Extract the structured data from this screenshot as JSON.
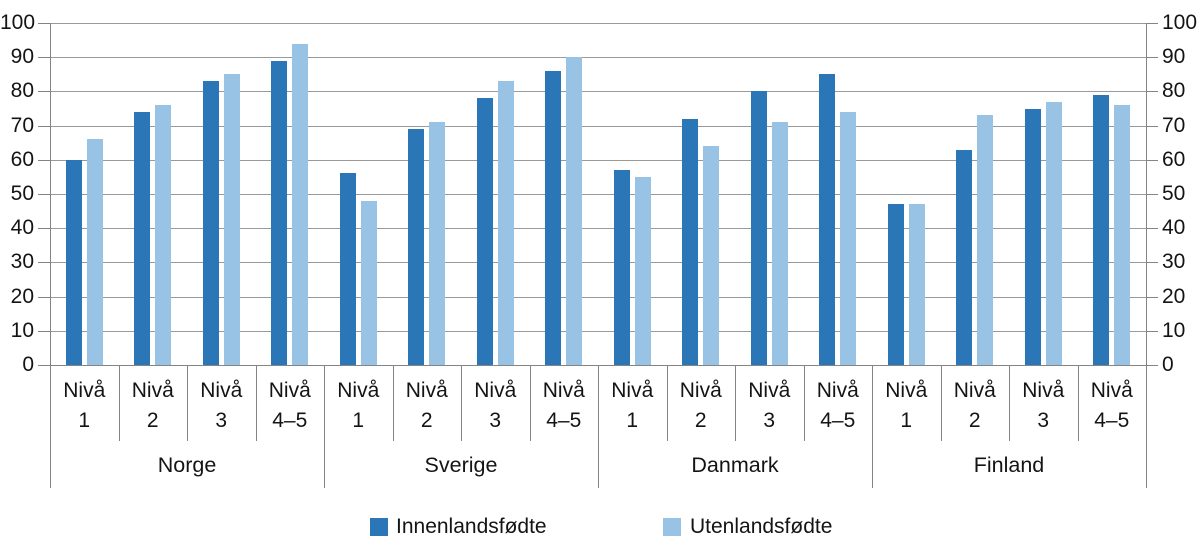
{
  "chart_data": {
    "type": "bar",
    "title": "",
    "grid": true,
    "legend_position": "bottom",
    "groups": [
      "Norge",
      "Sverige",
      "Danmark",
      "Finland"
    ],
    "levels": [
      "Nivå 1",
      "Nivå 2",
      "Nivå 3",
      "Nivå 4–5"
    ],
    "level_label_line1": "Nivå",
    "level_label_line2": [
      "1",
      "2",
      "3",
      "4–5"
    ],
    "series": [
      {
        "name": "Innenlandsfødte",
        "color": "#2b76b6",
        "values": [
          [
            60,
            74,
            83,
            89
          ],
          [
            56,
            69,
            78,
            86
          ],
          [
            57,
            72,
            80,
            85
          ],
          [
            47,
            63,
            75,
            79
          ]
        ]
      },
      {
        "name": "Utenlandsfødte",
        "color": "#98c3e5",
        "values": [
          [
            66,
            76,
            85,
            94
          ],
          [
            48,
            71,
            83,
            90
          ],
          [
            55,
            64,
            71,
            74
          ],
          [
            47,
            73,
            77,
            76
          ]
        ]
      }
    ],
    "y_axis": {
      "min": 0,
      "max": 100,
      "step": 10,
      "tick_labels": [
        "0",
        "10",
        "20",
        "30",
        "40",
        "50",
        "60",
        "70",
        "80",
        "90",
        "100"
      ],
      "dual_axis": true
    }
  }
}
